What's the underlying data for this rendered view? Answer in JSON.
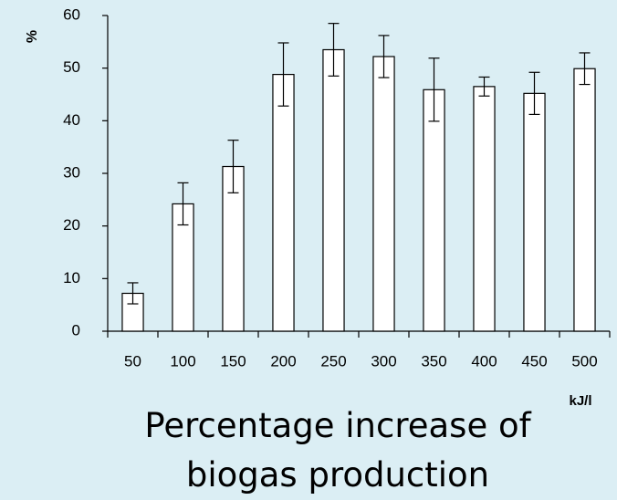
{
  "chart_data": {
    "type": "bar",
    "title": "Percentage increase of biogas production",
    "xlabel": "kJ/l",
    "ylabel": "%",
    "categories": [
      "50",
      "100",
      "150",
      "200",
      "250",
      "300",
      "350",
      "400",
      "450",
      "500"
    ],
    "values": [
      7.2,
      24.2,
      31.3,
      48.8,
      53.5,
      52.2,
      45.9,
      46.5,
      45.2,
      49.9
    ],
    "errors": [
      2,
      4,
      5,
      6,
      5,
      4,
      6,
      1.8,
      4,
      3
    ],
    "color": "#ffffff",
    "ylim": [
      0,
      60
    ],
    "yticks": [
      0,
      10,
      20,
      30,
      40,
      50,
      60
    ],
    "grid": false
  }
}
